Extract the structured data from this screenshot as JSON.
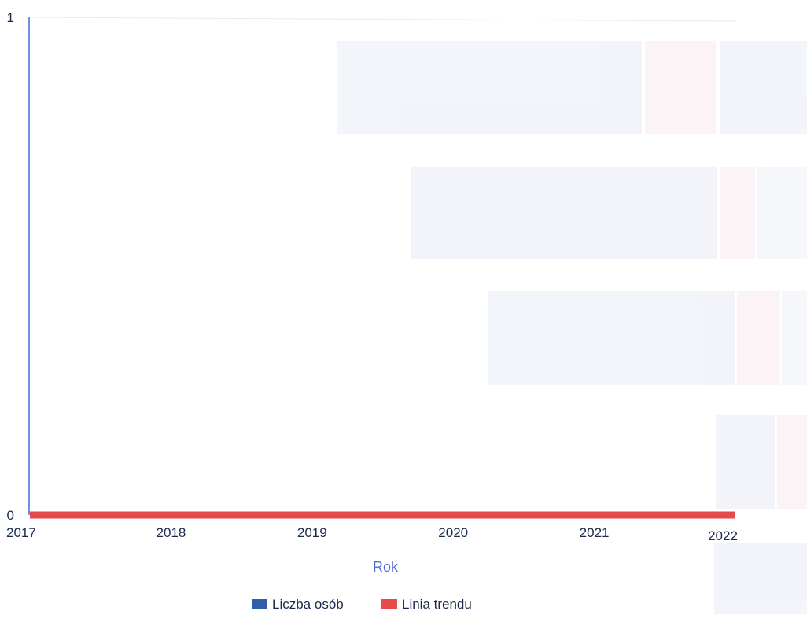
{
  "colors": {
    "series_1": "#2f5fa8",
    "series_2": "#e84a4a",
    "axis_line": "#3b6fd6",
    "axis_title": "#4f6fd0",
    "text": "#1b2a4a"
  },
  "chart_data": {
    "type": "bar",
    "title": "",
    "xlabel": "Rok",
    "ylabel": "",
    "x": [
      2017,
      2018,
      2019,
      2020,
      2021,
      2022
    ],
    "xlim": [
      2017,
      2022
    ],
    "ylim": [
      0,
      1
    ],
    "y_ticks": [
      0,
      1
    ],
    "series": [
      {
        "name": "Liczba osób",
        "type": "bar",
        "color": "#2f5fa8",
        "values": [
          0,
          0,
          0,
          0,
          0,
          0
        ]
      },
      {
        "name": "Linia trendu",
        "type": "line",
        "color": "#e84a4a",
        "values": [
          0,
          0,
          0,
          0,
          0,
          0
        ]
      }
    ],
    "grid": false,
    "legend_position": "bottom"
  }
}
